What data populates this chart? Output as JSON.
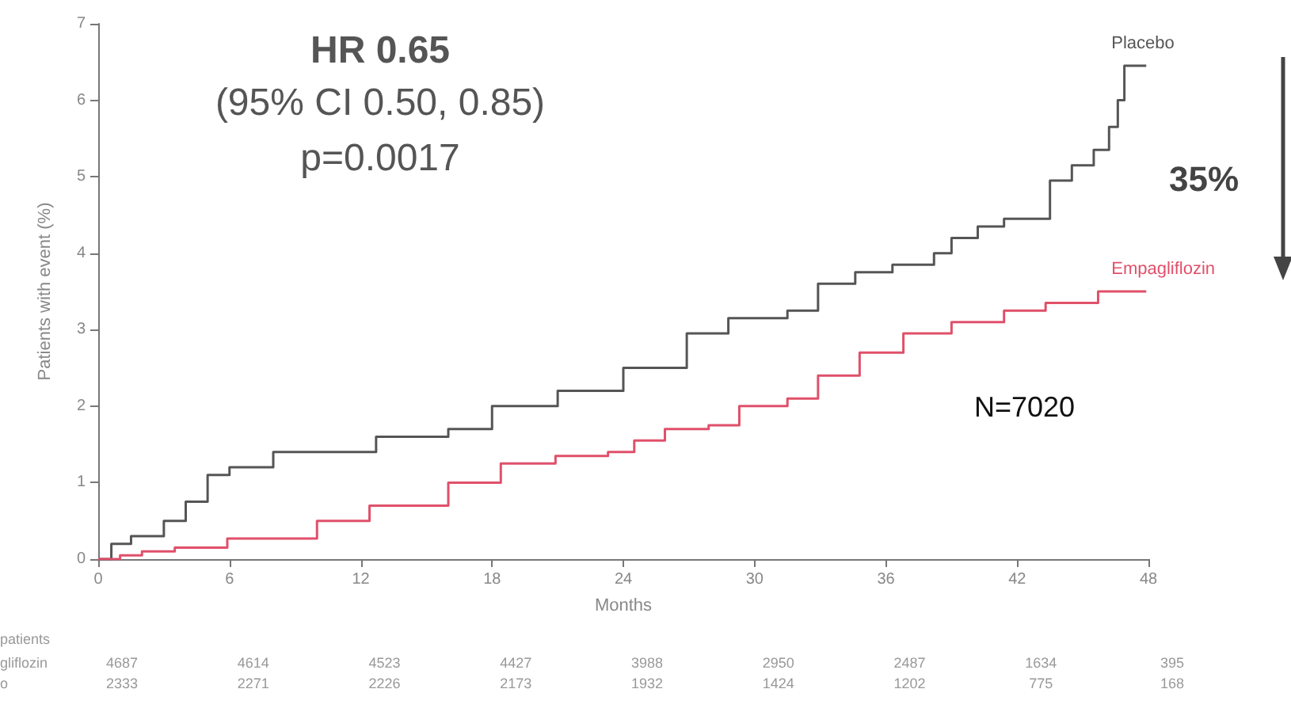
{
  "chart_data": {
    "type": "step",
    "xlabel": "Months",
    "ylabel": "Patients with event (%)",
    "xlim": [
      0,
      48
    ],
    "xticks": [
      0,
      6,
      12,
      18,
      24,
      30,
      36,
      42,
      48
    ],
    "ylim": [
      0,
      7
    ],
    "yticks": [
      0,
      1,
      2,
      3,
      4,
      5,
      6,
      7
    ],
    "grid": false,
    "legend": false,
    "marker": "none",
    "line_style": "solid",
    "series": [
      {
        "name": "Placebo",
        "color": "#555555",
        "x": [
          0,
          0.6,
          1.5,
          3,
          4,
          5,
          6,
          8,
          12.7,
          16,
          18,
          21,
          24,
          26.9,
          28.8,
          31.5,
          32.9,
          34.6,
          36.3,
          38.2,
          39,
          40.2,
          41.4,
          43.5,
          44.5,
          45.5,
          46.2,
          46.6,
          46.9,
          47.9
        ],
        "values": [
          0,
          0.2,
          0.3,
          0.5,
          0.75,
          1.1,
          1.2,
          1.4,
          1.6,
          1.7,
          2.0,
          2.2,
          2.5,
          2.95,
          3.15,
          3.25,
          3.6,
          3.75,
          3.85,
          4.0,
          4.2,
          4.35,
          4.45,
          4.95,
          5.15,
          5.35,
          5.65,
          6.0,
          6.45,
          6.45
        ]
      },
      {
        "name": "Empagliflozin",
        "color": "#e0506a",
        "x": [
          0,
          1,
          2,
          3.5,
          5.9,
          10,
          12.4,
          16,
          18.4,
          20.9,
          23.3,
          24.5,
          25.9,
          27.9,
          29.3,
          31.5,
          32.9,
          34.8,
          36.8,
          39,
          41.4,
          43.3,
          45.7,
          47.9
        ],
        "values": [
          0,
          0.05,
          0.1,
          0.15,
          0.27,
          0.5,
          0.7,
          1.0,
          1.25,
          1.35,
          1.4,
          1.55,
          1.7,
          1.75,
          2.0,
          2.1,
          2.4,
          2.7,
          2.95,
          3.1,
          3.25,
          3.35,
          3.5,
          3.5
        ]
      }
    ],
    "annotations": [
      "HR 0.65",
      "(95% CI 0.50, 0.85)",
      "p=0.0017",
      "N=7020",
      "35%",
      "patients",
      "gliflozin",
      "o",
      "4687",
      "4614",
      "4523",
      "4427",
      "3988",
      "2950",
      "2487",
      "1634",
      "395",
      "2333",
      "2271",
      "2226",
      "2173",
      "1932",
      "1424",
      "1202",
      "775",
      "168"
    ]
  }
}
